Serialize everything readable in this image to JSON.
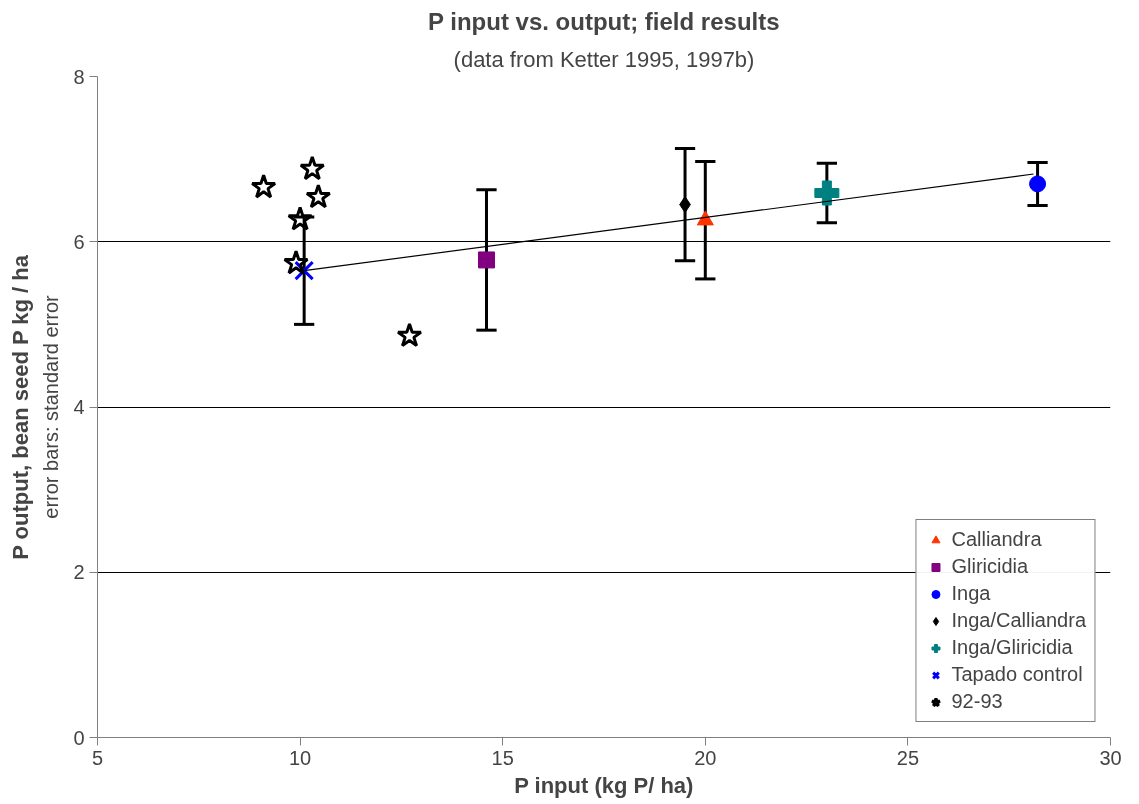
{
  "chart_data": {
    "type": "scatter",
    "title": "P input vs. output; field results",
    "subtitle": "(data from Ketter 1995, 1997b)",
    "xlabel": "P input (kg P/ ha)",
    "ylabel": "P output, bean seed P kg / ha",
    "annotations": [
      "error bars: standard error"
    ],
    "xlim": [
      5,
      30
    ],
    "xticks": [
      5,
      10,
      15,
      20,
      25,
      30
    ],
    "ylim": [
      0,
      8
    ],
    "yticks": [
      0,
      2,
      4,
      6,
      8
    ],
    "grid": "y",
    "legend": "bottom right",
    "series": [
      {
        "name": "Calliandra",
        "color": "#ff3300",
        "marker": "triangle",
        "x": [
          20.0
        ],
        "values": [
          6.26
        ],
        "errors": [
          0.71
        ]
      },
      {
        "name": "Gliricidia",
        "color": "#800080",
        "marker": "square",
        "x": [
          14.6
        ],
        "values": [
          5.78
        ],
        "errors": [
          0.85
        ]
      },
      {
        "name": "Inga",
        "color": "#0000ff",
        "marker": "circle",
        "x": [
          28.2
        ],
        "values": [
          6.7
        ],
        "errors": [
          0.26
        ]
      },
      {
        "name": "Inga/Calliandra",
        "color": "#000000",
        "marker": "diamond",
        "x": [
          19.5
        ],
        "values": [
          6.45
        ],
        "errors": [
          0.68
        ]
      },
      {
        "name": "Inga/Gliricidia",
        "color": "#008080",
        "marker": "cross",
        "x": [
          23.0
        ],
        "values": [
          6.59
        ],
        "errors": [
          0.36
        ]
      },
      {
        "name": "Tapado control",
        "color": "#0000ff",
        "marker": "x",
        "x": [
          10.1
        ],
        "values": [
          5.65
        ],
        "errors": [
          0.65
        ]
      },
      {
        "name": "92-93",
        "color": "#000000",
        "marker": "star",
        "x": [
          9.1,
          10.3,
          10.45,
          10.0,
          9.9,
          12.7
        ],
        "values": [
          6.66,
          6.88,
          6.54,
          6.27,
          5.74,
          4.86
        ]
      },
      {
        "type": "line",
        "color": "#000000",
        "x": [
          10.1,
          28.1
        ],
        "values": [
          5.65,
          6.82
        ]
      }
    ]
  }
}
